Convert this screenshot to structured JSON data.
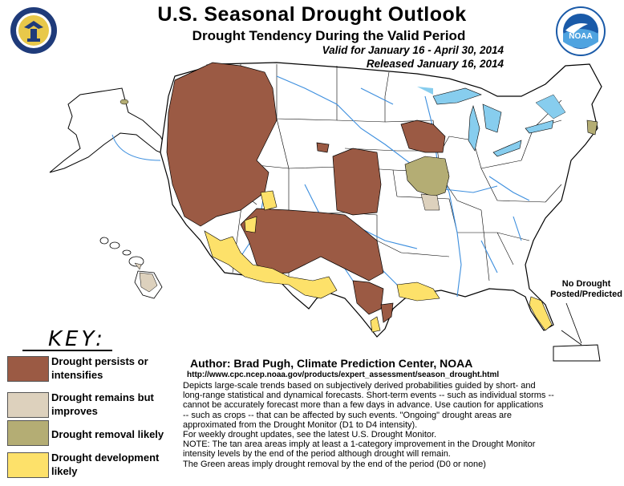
{
  "header": {
    "title": "U.S. Seasonal Drought Outlook",
    "subtitle": "Drought Tendency During the Valid Period",
    "valid": "Valid for January 16 - April 30, 2014",
    "released": "Released January 16, 2014"
  },
  "logos": {
    "left": "department-of-commerce-seal-icon",
    "right_text": "NOAA"
  },
  "map": {
    "annotation_lines": [
      "No Drought",
      "Posted/Predicted"
    ]
  },
  "key": {
    "title": "KEY:",
    "items": [
      {
        "label": "Drought persists or intensifies",
        "color": "#9b5a44"
      },
      {
        "label": "Drought remains but improves",
        "color": "#ddd1bd"
      },
      {
        "label": "Drought removal likely",
        "color": "#b4ad74"
      },
      {
        "label": "Drought development likely",
        "color": "#fde16a"
      }
    ]
  },
  "credits": {
    "author": "Author: Brad Pugh, Climate Prediction Center, NOAA",
    "url": "http://www.cpc.ncep.noaa.gov/products/expert_assessment/season_drought.html",
    "lines": [
      "Depicts large-scale trends based on subjectively derived probabilities guided by short- and",
      "long-range statistical and dynamical forecasts. Short-term events -- such as individual storms --",
      "cannot be accurately forecast more than a few days in advance. Use caution for applications",
      "-- such as crops -- that can be affected by such events. \"Ongoing\" drought areas are",
      "approximated from the Drought Monitor (D1 to D4 intensity).",
      "For weekly drought updates, see the latest U.S. Drought Monitor.",
      "NOTE: The tan area areas imply at least a 1-category improvement in the Drought Monitor",
      "intensity levels by the end of the period although drought will remain.",
      "The Green areas imply drought removal by the end of the period (D0 or none)"
    ]
  },
  "colors": {
    "water": "#87cdee",
    "river": "#3c8ede",
    "land": "#ffffff",
    "persist": "#9b5a44",
    "improve": "#ddd1bd",
    "removal": "#b4ad74",
    "develop": "#fde16a"
  }
}
